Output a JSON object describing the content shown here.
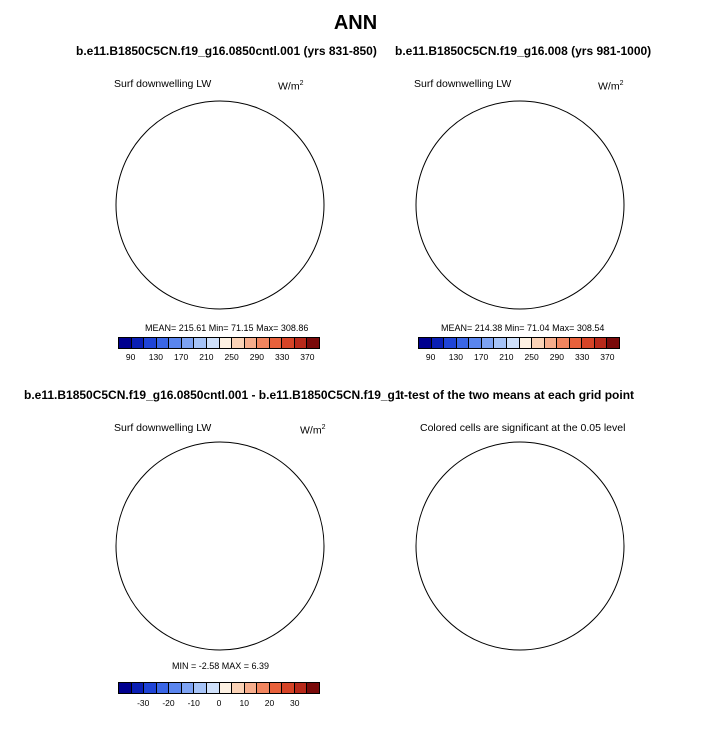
{
  "main_title": "ANN",
  "panels": [
    {
      "title": "b.e11.B1850C5CN.f19_g16.0850cntl.001 (yrs 831-850)",
      "left_label": "Surf downwelling LW",
      "right_label_base": "W/m",
      "right_label_sup": "2",
      "stats": "MEAN= 215.61  Min=  71.15  Max= 308.86"
    },
    {
      "title": "b.e11.B1850C5CN.f19_g16.008 (yrs 981-1000)",
      "left_label": "Surf downwelling LW",
      "right_label_base": "W/m",
      "right_label_sup": "2",
      "stats": "MEAN= 214.38  Min=  71.04  Max= 308.54"
    },
    {
      "title": "b.e11.B1850C5CN.f19_g16.0850cntl.001 - b.e11.B1850C5CN.f19_g16.008",
      "left_label": "Surf downwelling LW",
      "right_label_base": "W/m",
      "right_label_sup": "2",
      "stats": "MIN =  -2.58 MAX =   6.39"
    },
    {
      "title": "t-test of the two means at each grid point",
      "left_label": "Colored cells are significant at the 0.05 level"
    }
  ],
  "colorbar_abs": {
    "colors": [
      "#00008f",
      "#0a1fb5",
      "#1f44d6",
      "#3a66e6",
      "#5a85ee",
      "#7ea3f3",
      "#a6c3f7",
      "#cfe0fa",
      "#fdf1e3",
      "#fad2b6",
      "#f6ad8c",
      "#f1855f",
      "#e8613b",
      "#d64427",
      "#b8291a",
      "#7a0a0a"
    ],
    "ticks": [
      "90",
      "130",
      "170",
      "210",
      "250",
      "290",
      "330",
      "370"
    ]
  },
  "colorbar_diff": {
    "colors": [
      "#00008f",
      "#0a1fb5",
      "#1f44d6",
      "#3a66e6",
      "#5a85ee",
      "#7ea3f3",
      "#a6c3f7",
      "#cfe0fa",
      "#fdf1e3",
      "#fad2b6",
      "#f6ad8c",
      "#f1855f",
      "#e8613b",
      "#d64427",
      "#b8291a",
      "#7a0a0a"
    ],
    "ticks": [
      "-30",
      "-20",
      "-10",
      "0",
      "10",
      "20",
      "30"
    ]
  },
  "sig_color": "#f47c4f"
}
